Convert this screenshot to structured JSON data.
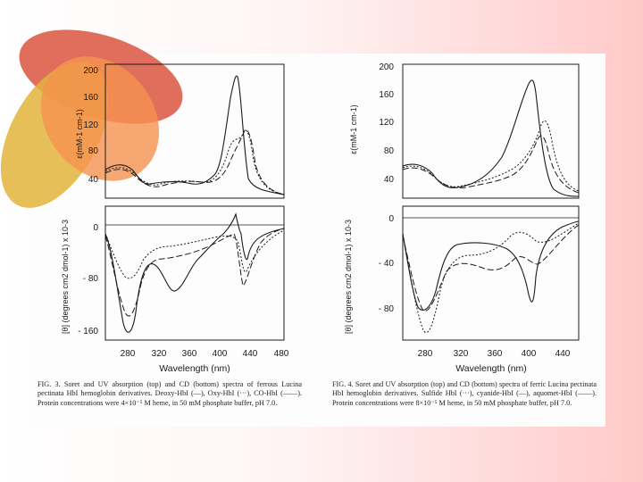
{
  "figure3": {
    "top_y_ticks": [
      "200",
      "160",
      "120",
      "80",
      "40"
    ],
    "top_ylabel": "ε(mM-1 cm-1)",
    "bottom_y_ticks": [
      "0",
      "- 80",
      "- 160"
    ],
    "bottom_ylabel": "[θ] (degrees cm2 dmol-1) x 10-3",
    "x_ticks": [
      "280",
      "320",
      "360",
      "400",
      "440",
      "480"
    ],
    "xlabel": "Wavelength (nm)",
    "caption": "FIG. 3. Soret and UV absorption (top) and CD (bottom) spectra of ferrous Lucina pectinata HbI hemoglobin derivatives. Deoxy-HbI (—), Oxy-HbI (···), CO-HbI (——). Protein concentrations were 4×10⁻⁵ M heme, in 50 mM phosphate buffer, pH 7.0."
  },
  "figure4": {
    "top_y_ticks": [
      "200",
      "160",
      "120",
      "80",
      "40"
    ],
    "top_ylabel": "ε(mM-1 cm-1)",
    "bottom_y_ticks": [
      "0",
      "- 40",
      "- 80"
    ],
    "bottom_ylabel": "[θ] (degrees cm2 dmol-1) x 10-3",
    "x_ticks": [
      "280",
      "320",
      "360",
      "400",
      "440"
    ],
    "xlabel": "Wavelength (nm)",
    "caption": "FIG. 4. Soret and UV absorption (top) and CD (bottom) spectra of ferric Lucina pectinata HbI hemoglobin derivatives. Sulfide HbI (···), cyanide-HbI (—), aquomet-HbI (——). Protein concentrations were 8×10⁻⁵ M heme, in 50 mM phosphate buffer, pH 7.0."
  },
  "colors": {
    "petal_red": "#d9553f",
    "petal_yellow": "#e2b43c",
    "petal_orange": "#f5924f",
    "ink": "#1a1a1a"
  }
}
